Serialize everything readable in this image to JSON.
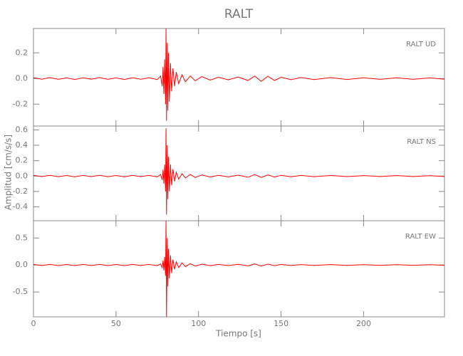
{
  "chart_data": [
    {
      "type": "line",
      "title": "RALT",
      "annotation": "RALT   UD",
      "color": "#ff0000",
      "x": [
        0,
        5,
        10,
        15,
        20,
        25,
        30,
        35,
        40,
        45,
        50,
        55,
        60,
        65,
        70,
        75,
        77,
        78,
        78.5,
        79,
        79.5,
        80,
        80.3,
        80.6,
        81,
        81.4,
        81.8,
        82.3,
        83,
        83.7,
        84.5,
        85.5,
        86.5,
        88,
        90,
        92,
        95,
        98,
        102,
        107,
        112,
        118,
        124,
        130,
        134,
        138,
        142,
        146,
        150,
        156,
        162,
        170,
        180,
        190,
        200,
        210,
        220,
        230,
        240,
        249
      ],
      "values": [
        0.006,
        -0.005,
        0.007,
        -0.006,
        0.005,
        -0.007,
        0.006,
        -0.005,
        0.007,
        -0.006,
        0.005,
        -0.007,
        0.006,
        -0.005,
        0.006,
        -0.008,
        0.02,
        -0.06,
        0.09,
        -0.12,
        0.15,
        -0.2,
        0.39,
        -0.33,
        0.28,
        -0.25,
        0.2,
        -0.18,
        0.12,
        -0.1,
        0.08,
        -0.06,
        0.05,
        -0.04,
        0.03,
        -0.025,
        0.02,
        -0.018,
        0.015,
        -0.012,
        0.01,
        -0.01,
        0.012,
        -0.015,
        0.02,
        -0.022,
        0.018,
        -0.015,
        0.01,
        -0.009,
        0.008,
        -0.008,
        0.007,
        -0.007,
        0.006,
        -0.006,
        0.006,
        -0.006,
        0.005,
        -0.005
      ],
      "xlim": [
        0,
        249
      ],
      "xticks": [
        0,
        50,
        100,
        150,
        200
      ],
      "ylim": [
        -0.37,
        0.39
      ],
      "yticks": [
        0.2,
        {
          "value": 0,
          "label": "0.0"
        },
        -0.2
      ]
    },
    {
      "type": "line",
      "y_label": "Amplitud [cm/s/s]",
      "annotation": "RALT   NS",
      "color": "#ff0000",
      "x": [
        0,
        5,
        10,
        15,
        20,
        25,
        30,
        35,
        40,
        45,
        50,
        55,
        60,
        65,
        70,
        75,
        77,
        78,
        78.5,
        79,
        79.5,
        80,
        80.3,
        80.6,
        81,
        81.4,
        81.8,
        82.3,
        83,
        83.7,
        84.5,
        85.5,
        86.5,
        88,
        90,
        92,
        95,
        98,
        102,
        107,
        112,
        118,
        124,
        130,
        134,
        138,
        142,
        146,
        150,
        156,
        162,
        170,
        180,
        190,
        200,
        210,
        220,
        230,
        240,
        249
      ],
      "values": [
        0.008,
        -0.007,
        0.009,
        -0.008,
        0.007,
        -0.009,
        0.008,
        -0.007,
        0.009,
        -0.008,
        0.007,
        -0.009,
        0.008,
        -0.007,
        0.008,
        -0.01,
        0.02,
        -0.05,
        0.08,
        -0.1,
        0.15,
        -0.2,
        0.62,
        -0.5,
        0.4,
        -0.3,
        0.25,
        -0.2,
        0.15,
        -0.12,
        0.09,
        -0.07,
        0.05,
        -0.04,
        0.03,
        -0.025,
        0.02,
        -0.018,
        0.015,
        -0.012,
        0.01,
        -0.01,
        0.012,
        -0.015,
        0.02,
        -0.018,
        0.015,
        -0.012,
        0.01,
        -0.009,
        0.008,
        -0.008,
        0.007,
        -0.007,
        0.006,
        -0.006,
        0.006,
        -0.006,
        0.005,
        -0.005
      ],
      "xlim": [
        0,
        249
      ],
      "xticks": [
        0,
        50,
        100,
        150,
        200
      ],
      "ylim": [
        -0.58,
        0.65
      ],
      "yticks": [
        0.6,
        0.4,
        0.2,
        {
          "value": 0,
          "label": "0.0"
        },
        -0.2,
        -0.4
      ]
    },
    {
      "type": "line",
      "x_label": "Tiempo [s]",
      "annotation": "RALT   EW",
      "color": "#ff0000",
      "x": [
        0,
        5,
        10,
        15,
        20,
        25,
        30,
        35,
        40,
        45,
        50,
        55,
        60,
        65,
        70,
        75,
        77,
        78,
        78.5,
        79,
        79.5,
        80,
        80.3,
        80.6,
        81,
        81.4,
        81.8,
        82.3,
        83,
        83.7,
        84.5,
        85.5,
        86.5,
        88,
        90,
        92,
        95,
        98,
        102,
        107,
        112,
        118,
        124,
        130,
        134,
        138,
        142,
        146,
        150,
        156,
        162,
        170,
        180,
        190,
        200,
        210,
        220,
        230,
        240,
        249
      ],
      "values": [
        0.01,
        -0.009,
        0.011,
        -0.01,
        0.009,
        -0.011,
        0.01,
        -0.009,
        0.011,
        -0.01,
        0.009,
        -0.011,
        0.01,
        -0.009,
        0.01,
        -0.012,
        0.02,
        -0.05,
        0.08,
        -0.1,
        0.15,
        -0.2,
        0.82,
        -0.96,
        0.5,
        -0.4,
        0.3,
        -0.25,
        0.18,
        -0.15,
        0.1,
        -0.08,
        0.06,
        -0.05,
        0.04,
        -0.03,
        0.025,
        -0.02,
        0.015,
        -0.012,
        0.01,
        -0.01,
        0.012,
        -0.015,
        0.02,
        -0.018,
        0.015,
        -0.012,
        0.01,
        -0.009,
        0.008,
        -0.008,
        0.007,
        -0.007,
        0.006,
        -0.006,
        0.006,
        -0.006,
        0.005,
        -0.005
      ],
      "xlim": [
        0,
        249
      ],
      "xticks": [
        0,
        50,
        100,
        150,
        200
      ],
      "ylim": [
        -0.96,
        0.82
      ],
      "yticks": [
        {
          "value": 0.5,
          "label": "0.5"
        },
        {
          "value": 0,
          "label": "0.0"
        },
        {
          "value": -0.5,
          "label": "-0.5"
        }
      ]
    }
  ]
}
